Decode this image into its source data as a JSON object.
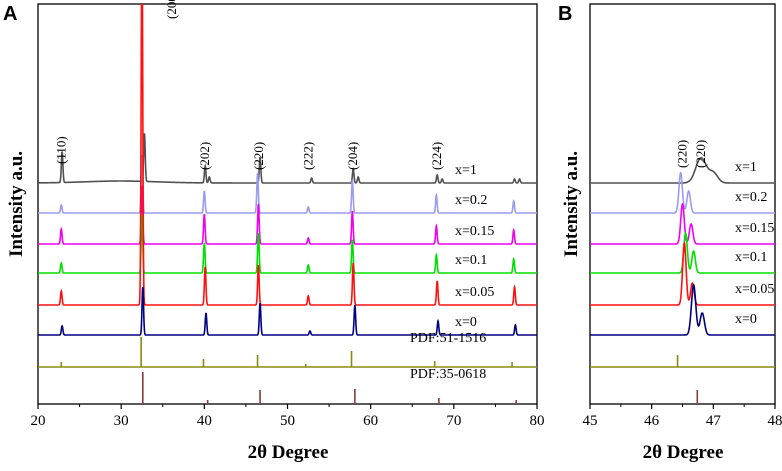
{
  "figure": {
    "panel_a_letter": "A",
    "panel_b_letter": "B"
  },
  "chart_data": [
    {
      "type": "line",
      "panel": "A",
      "title": "",
      "xlabel": "2θ Degree",
      "ylabel": "Intensity a.u.",
      "xlim": [
        20,
        80
      ],
      "xticks": [
        20,
        30,
        40,
        50,
        60,
        70,
        80
      ],
      "yticks": [],
      "grid": false,
      "note": "Intensity values are relative (arbitrary units), expressed as peak height above the curve's own baseline; curves are stacked vertically.",
      "hkl_labels": [
        {
          "text": "(110)",
          "x": 22.8
        },
        {
          "text": "(200)",
          "x": 32.5
        },
        {
          "text": "(202)",
          "x": 40.1
        },
        {
          "text": "(220)",
          "x": 46.6
        },
        {
          "text": "(222)",
          "x": 52.5
        },
        {
          "text": "(204)",
          "x": 57.9
        },
        {
          "text": "(224)",
          "x": 68.0
        }
      ],
      "series": [
        {
          "name": "x=1",
          "color": "#505050",
          "peaks": [
            [
              22.9,
              31
            ],
            [
              32.8,
              48
            ],
            [
              40.1,
              17
            ],
            [
              40.6,
              6
            ],
            [
              46.7,
              26
            ],
            [
              52.9,
              5
            ],
            [
              57.9,
              14
            ],
            [
              58.5,
              6
            ],
            [
              68.0,
              8
            ],
            [
              68.6,
              4
            ],
            [
              77.3,
              4
            ],
            [
              77.9,
              4
            ]
          ]
        },
        {
          "name": "x=0.2",
          "color": "#9b9bf0",
          "peaks": [
            [
              22.8,
              8
            ],
            [
              32.5,
              58
            ],
            [
              40.0,
              22
            ],
            [
              46.4,
              40
            ],
            [
              52.5,
              6
            ],
            [
              57.8,
              33
            ],
            [
              67.9,
              18
            ],
            [
              77.2,
              12
            ]
          ]
        },
        {
          "name": "x=0.15",
          "color": "#f000f0",
          "peaks": [
            [
              22.8,
              15
            ],
            [
              32.5,
              58
            ],
            [
              40.0,
              30
            ],
            [
              46.5,
              40
            ],
            [
              52.5,
              6
            ],
            [
              57.8,
              33
            ],
            [
              67.9,
              18
            ],
            [
              77.2,
              14
            ]
          ]
        },
        {
          "name": "x=0.1",
          "color": "#00e000",
          "peaks": [
            [
              22.8,
              10
            ],
            [
              32.5,
              58
            ],
            [
              40.0,
              30
            ],
            [
              46.5,
              40
            ],
            [
              52.5,
              8
            ],
            [
              57.8,
              33
            ],
            [
              67.9,
              18
            ],
            [
              77.2,
              14
            ]
          ]
        },
        {
          "name": "x=0.05",
          "color": "#ff1010",
          "peaks": [
            [
              22.8,
              14
            ],
            [
              32.5,
              375
            ],
            [
              40.1,
              38
            ],
            [
              46.5,
              40
            ],
            [
              52.5,
              9
            ],
            [
              57.9,
              42
            ],
            [
              68.0,
              24
            ],
            [
              77.3,
              18
            ]
          ]
        },
        {
          "name": "x=0",
          "color": "#000080",
          "peaks": [
            [
              22.9,
              9
            ],
            [
              32.6,
              48
            ],
            [
              40.2,
              22
            ],
            [
              46.7,
              32
            ],
            [
              52.7,
              4
            ],
            [
              58.1,
              30
            ],
            [
              68.1,
              14
            ],
            [
              77.4,
              10
            ]
          ]
        }
      ],
      "reference_patterns": [
        {
          "name": "PDF:51-1516",
          "color": "#8a8a10",
          "lines": [
            [
              22.8,
              5
            ],
            [
              32.4,
              30
            ],
            [
              39.9,
              8
            ],
            [
              46.4,
              12
            ],
            [
              52.2,
              3
            ],
            [
              57.7,
              16
            ],
            [
              67.7,
              6
            ],
            [
              77.0,
              5
            ]
          ]
        },
        {
          "name": "PDF:35-0618",
          "color": "#8b3a3a",
          "lines": [
            [
              32.6,
              32
            ],
            [
              40.4,
              4
            ],
            [
              46.7,
              14
            ],
            [
              58.1,
              15
            ],
            [
              68.2,
              6
            ],
            [
              77.5,
              4
            ]
          ]
        }
      ]
    },
    {
      "type": "line",
      "panel": "B",
      "title": "",
      "xlabel": "2θ Degree",
      "ylabel": "Intensity a.u.",
      "xlim": [
        45,
        48
      ],
      "xticks": [
        45,
        46,
        47,
        48
      ],
      "yticks": [],
      "grid": false,
      "note": "Zoom of the (220) reflection; intensities relative (arbitrary units) above each curve's baseline.",
      "hkl_labels": [
        {
          "text": "(220)",
          "x": 46.5
        },
        {
          "text": "(220)",
          "x": 46.8
        }
      ],
      "series": [
        {
          "name": "x=1",
          "color": "#505050",
          "peaks": [
            [
              46.8,
              25,
              0.12
            ],
            [
              47.0,
              10,
              0.1
            ]
          ]
        },
        {
          "name": "x=0.2",
          "color": "#9b9bf0",
          "peaks": [
            [
              46.47,
              40,
              0.04
            ],
            [
              46.6,
              22,
              0.04
            ]
          ]
        },
        {
          "name": "x=0.15",
          "color": "#f000f0",
          "peaks": [
            [
              46.5,
              40,
              0.04
            ],
            [
              46.64,
              20,
              0.04
            ]
          ]
        },
        {
          "name": "x=0.1",
          "color": "#00e000",
          "peaks": [
            [
              46.55,
              40,
              0.04
            ],
            [
              46.68,
              22,
              0.04
            ]
          ]
        },
        {
          "name": "x=0.05",
          "color": "#ff1010",
          "peaks": [
            [
              46.53,
              62,
              0.04
            ],
            [
              46.66,
              22,
              0.04
            ]
          ]
        },
        {
          "name": "x=0",
          "color": "#000080",
          "peaks": [
            [
              46.68,
              50,
              0.05
            ],
            [
              46.82,
              22,
              0.05
            ]
          ]
        }
      ],
      "reference_patterns": [
        {
          "name": "PDF:51-1516",
          "color": "#8a8a10",
          "lines": [
            [
              46.42,
              12
            ]
          ]
        },
        {
          "name": "PDF:35-0618",
          "color": "#8b3a3a",
          "lines": [
            [
              46.74,
              14
            ]
          ]
        }
      ]
    }
  ]
}
